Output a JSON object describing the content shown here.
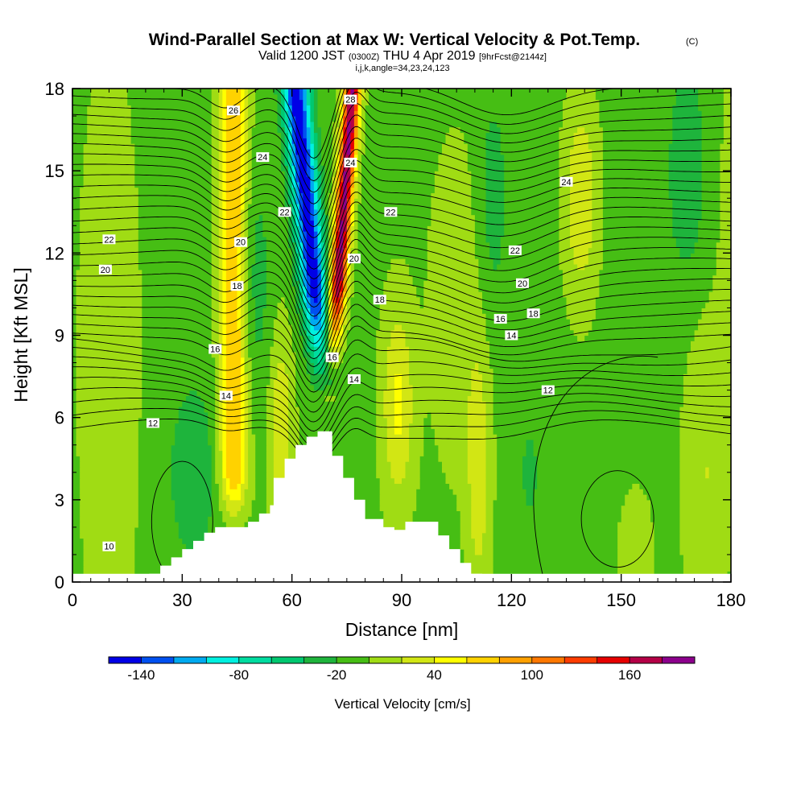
{
  "title": {
    "main": "Wind-Parallel Section at Max W: Vertical Velocity & Pot.Temp.",
    "copyright": "(C)",
    "valid_prefix": "Valid 1200 JST",
    "valid_utc": "(0300Z)",
    "valid_date": "THU 4 Apr 2019",
    "forecast": "[9hrFcst@2144z]",
    "indices": "i,j,k,angle=34,23,24,123"
  },
  "colors": {
    "terrain": "#ffffff",
    "contour_line": "#000000",
    "frame": "#000000"
  },
  "chart_data": {
    "type": "cross-section contour",
    "xlabel": "Distance [nm]",
    "ylabel": "Height [Kft MSL]",
    "xlim": [
      0,
      180
    ],
    "ylim": [
      0,
      18
    ],
    "x_ticks": [
      0,
      30,
      60,
      90,
      120,
      150,
      180
    ],
    "y_ticks": [
      0,
      3,
      6,
      9,
      12,
      15,
      18
    ],
    "colorbar": {
      "title": "Vertical Velocity [cm/s]",
      "bin_edges": [
        -160,
        -140,
        -120,
        -100,
        -80,
        -60,
        -40,
        -20,
        0,
        20,
        40,
        60,
        80,
        100,
        120,
        140,
        160,
        180,
        200
      ],
      "colors": [
        "#0000e6",
        "#0050f0",
        "#00aaf0",
        "#00f0e0",
        "#00dca0",
        "#00c870",
        "#1eb43c",
        "#46be14",
        "#a0dc14",
        "#d2e614",
        "#ffff00",
        "#ffd200",
        "#ffa000",
        "#ff7800",
        "#ff3c00",
        "#e60000",
        "#b40046",
        "#8c008c"
      ],
      "tick_values": [
        -140,
        -80,
        -20,
        40,
        100,
        160
      ],
      "tick_labels": [
        "-140",
        "-80",
        "-20",
        "40",
        "100",
        "160"
      ]
    },
    "contour_field": "Potential Temperature",
    "contour_labels": [
      {
        "text": "26",
        "x": 44,
        "y": 17.2
      },
      {
        "text": "28",
        "x": 76,
        "y": 17.6
      },
      {
        "text": "24",
        "x": 52,
        "y": 15.5
      },
      {
        "text": "24",
        "x": 76,
        "y": 15.3
      },
      {
        "text": "24",
        "x": 135,
        "y": 14.6
      },
      {
        "text": "22",
        "x": 58,
        "y": 13.5
      },
      {
        "text": "22",
        "x": 87,
        "y": 13.5
      },
      {
        "text": "22",
        "x": 10,
        "y": 12.5
      },
      {
        "text": "22",
        "x": 121,
        "y": 12.1
      },
      {
        "text": "20",
        "x": 46,
        "y": 12.4
      },
      {
        "text": "20",
        "x": 77,
        "y": 11.8
      },
      {
        "text": "20",
        "x": 9,
        "y": 11.4
      },
      {
        "text": "20",
        "x": 123,
        "y": 10.9
      },
      {
        "text": "18",
        "x": 45,
        "y": 10.8
      },
      {
        "text": "18",
        "x": 84,
        "y": 10.3
      },
      {
        "text": "18",
        "x": 126,
        "y": 9.8
      },
      {
        "text": "16",
        "x": 39,
        "y": 8.5
      },
      {
        "text": "16",
        "x": 117,
        "y": 9.6
      },
      {
        "text": "16",
        "x": 71,
        "y": 8.2
      },
      {
        "text": "14",
        "x": 42,
        "y": 6.8
      },
      {
        "text": "14",
        "x": 77,
        "y": 7.4
      },
      {
        "text": "14",
        "x": 120,
        "y": 9.0
      },
      {
        "text": "12",
        "x": 22,
        "y": 5.8
      },
      {
        "text": "12",
        "x": 130,
        "y": 7.0
      },
      {
        "text": "10",
        "x": 10,
        "y": 1.3
      }
    ],
    "terrain_profile": [
      [
        21,
        0
      ],
      [
        21,
        0.3
      ],
      [
        24,
        0.3
      ],
      [
        24,
        0.6
      ],
      [
        27,
        0.6
      ],
      [
        27,
        0.9
      ],
      [
        30,
        0.9
      ],
      [
        30,
        1.2
      ],
      [
        33,
        1.2
      ],
      [
        33,
        1.5
      ],
      [
        36,
        1.5
      ],
      [
        36,
        1.8
      ],
      [
        39,
        1.8
      ],
      [
        39,
        2.0
      ],
      [
        48,
        2.0
      ],
      [
        48,
        2.2
      ],
      [
        51,
        2.2
      ],
      [
        51,
        2.5
      ],
      [
        54,
        2.5
      ],
      [
        54,
        2.8
      ],
      [
        55,
        2.8
      ],
      [
        55,
        3.8
      ],
      [
        58,
        3.8
      ],
      [
        58,
        4.5
      ],
      [
        61,
        4.5
      ],
      [
        61,
        5.0
      ],
      [
        64,
        5.0
      ],
      [
        64,
        5.3
      ],
      [
        67,
        5.3
      ],
      [
        67,
        5.5
      ],
      [
        71,
        5.5
      ],
      [
        71,
        4.6
      ],
      [
        74,
        4.6
      ],
      [
        74,
        3.8
      ],
      [
        77,
        3.8
      ],
      [
        77,
        3.0
      ],
      [
        80,
        3.0
      ],
      [
        80,
        2.3
      ],
      [
        85,
        2.3
      ],
      [
        85,
        2.0
      ],
      [
        88,
        2.0
      ],
      [
        88,
        1.9
      ],
      [
        91,
        1.9
      ],
      [
        91,
        2.2
      ],
      [
        100,
        2.2
      ],
      [
        100,
        1.7
      ],
      [
        103,
        1.7
      ],
      [
        103,
        1.2
      ],
      [
        106,
        1.2
      ],
      [
        106,
        0.7
      ],
      [
        109,
        0.7
      ],
      [
        109,
        0.3
      ],
      [
        112,
        0.3
      ],
      [
        112,
        0
      ]
    ]
  }
}
